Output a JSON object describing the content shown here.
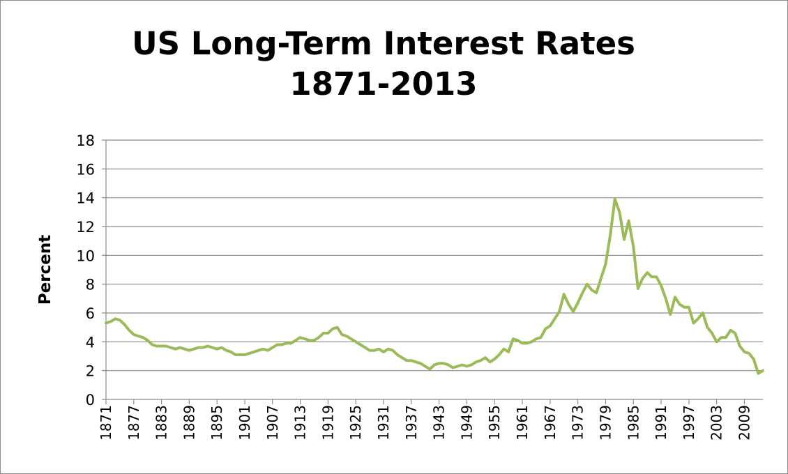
{
  "chart_data": {
    "type": "line",
    "title_lines": [
      "US Long-Term Interest Rates",
      "1871-2013"
    ],
    "ylabel": "Percent",
    "xlabel": "",
    "ylim": [
      0,
      18
    ],
    "yticks": [
      "0",
      "2",
      "4",
      "6",
      "8",
      "10",
      "12",
      "14",
      "16",
      "18"
    ],
    "xlim": [
      1871,
      2013
    ],
    "xtick_labels": [
      "1871",
      "1877",
      "1883",
      "1889",
      "1895",
      "1901",
      "1907",
      "1913",
      "1919",
      "1925",
      "1931",
      "1937",
      "1943",
      "1949",
      "1955",
      "1961",
      "1967",
      "1973",
      "1979",
      "1985",
      "1991",
      "1997",
      "2003",
      "2009"
    ],
    "grid": "horizontal",
    "legend": "none",
    "line_color": "#9bbb59",
    "series": [
      {
        "x": [
          1871,
          1872,
          1873,
          1874,
          1875,
          1876,
          1877,
          1878,
          1879,
          1880,
          1881,
          1882,
          1883,
          1884,
          1885,
          1886,
          1887,
          1888,
          1889,
          1890,
          1891,
          1892,
          1893,
          1894,
          1895,
          1896,
          1897,
          1898,
          1899,
          1900,
          1901,
          1902,
          1903,
          1904,
          1905,
          1906,
          1907,
          1908,
          1909,
          1910,
          1911,
          1912,
          1913,
          1914,
          1915,
          1916,
          1917,
          1918,
          1919,
          1920,
          1921,
          1922,
          1923,
          1924,
          1925,
          1926,
          1927,
          1928,
          1929,
          1930,
          1931,
          1932,
          1933,
          1934,
          1935,
          1936,
          1937,
          1938,
          1939,
          1940,
          1941,
          1942,
          1943,
          1944,
          1945,
          1946,
          1947,
          1948,
          1949,
          1950,
          1951,
          1952,
          1953,
          1954,
          1955,
          1956,
          1957,
          1958,
          1959,
          1960,
          1961,
          1962,
          1963,
          1964,
          1965,
          1966,
          1967,
          1968,
          1969,
          1970,
          1971,
          1972,
          1973,
          1974,
          1975,
          1976,
          1977,
          1978,
          1979,
          1980,
          1981,
          1982,
          1983,
          1984,
          1985,
          1986,
          1987,
          1988,
          1989,
          1990,
          1991,
          1992,
          1993,
          1994,
          1995,
          1996,
          1997,
          1998,
          1999,
          2000,
          2001,
          2002,
          2003,
          2004,
          2005,
          2006,
          2007,
          2008,
          2009,
          2010,
          2011,
          2012,
          2013
        ],
        "y": [
          5.3,
          5.4,
          5.6,
          5.5,
          5.2,
          4.8,
          4.5,
          4.4,
          4.3,
          4.1,
          3.8,
          3.7,
          3.7,
          3.7,
          3.6,
          3.5,
          3.6,
          3.5,
          3.4,
          3.5,
          3.6,
          3.6,
          3.7,
          3.6,
          3.5,
          3.6,
          3.4,
          3.3,
          3.1,
          3.1,
          3.1,
          3.2,
          3.3,
          3.4,
          3.5,
          3.4,
          3.6,
          3.8,
          3.8,
          3.9,
          3.9,
          4.1,
          4.3,
          4.2,
          4.1,
          4.1,
          4.3,
          4.6,
          4.6,
          4.9,
          5.0,
          4.5,
          4.4,
          4.2,
          4.0,
          3.8,
          3.6,
          3.4,
          3.4,
          3.5,
          3.3,
          3.5,
          3.4,
          3.1,
          2.9,
          2.7,
          2.7,
          2.6,
          2.5,
          2.3,
          2.1,
          2.4,
          2.5,
          2.5,
          2.4,
          2.2,
          2.3,
          2.4,
          2.3,
          2.4,
          2.6,
          2.7,
          2.9,
          2.6,
          2.8,
          3.1,
          3.5,
          3.3,
          4.2,
          4.1,
          3.9,
          3.9,
          4.0,
          4.2,
          4.3,
          4.9,
          5.1,
          5.6,
          6.1,
          7.3,
          6.6,
          6.1,
          6.7,
          7.4,
          8.0,
          7.6,
          7.4,
          8.4,
          9.4,
          11.4,
          13.9,
          13.0,
          11.1,
          12.4,
          10.6,
          7.7,
          8.4,
          8.8,
          8.5,
          8.5,
          7.9,
          7.0,
          5.9,
          7.1,
          6.6,
          6.4,
          6.4,
          5.3,
          5.6,
          6.0,
          5.0,
          4.6,
          4.0,
          4.3,
          4.3,
          4.8,
          4.6,
          3.7,
          3.3,
          3.2,
          2.8,
          1.8,
          2.0
        ]
      }
    ]
  }
}
